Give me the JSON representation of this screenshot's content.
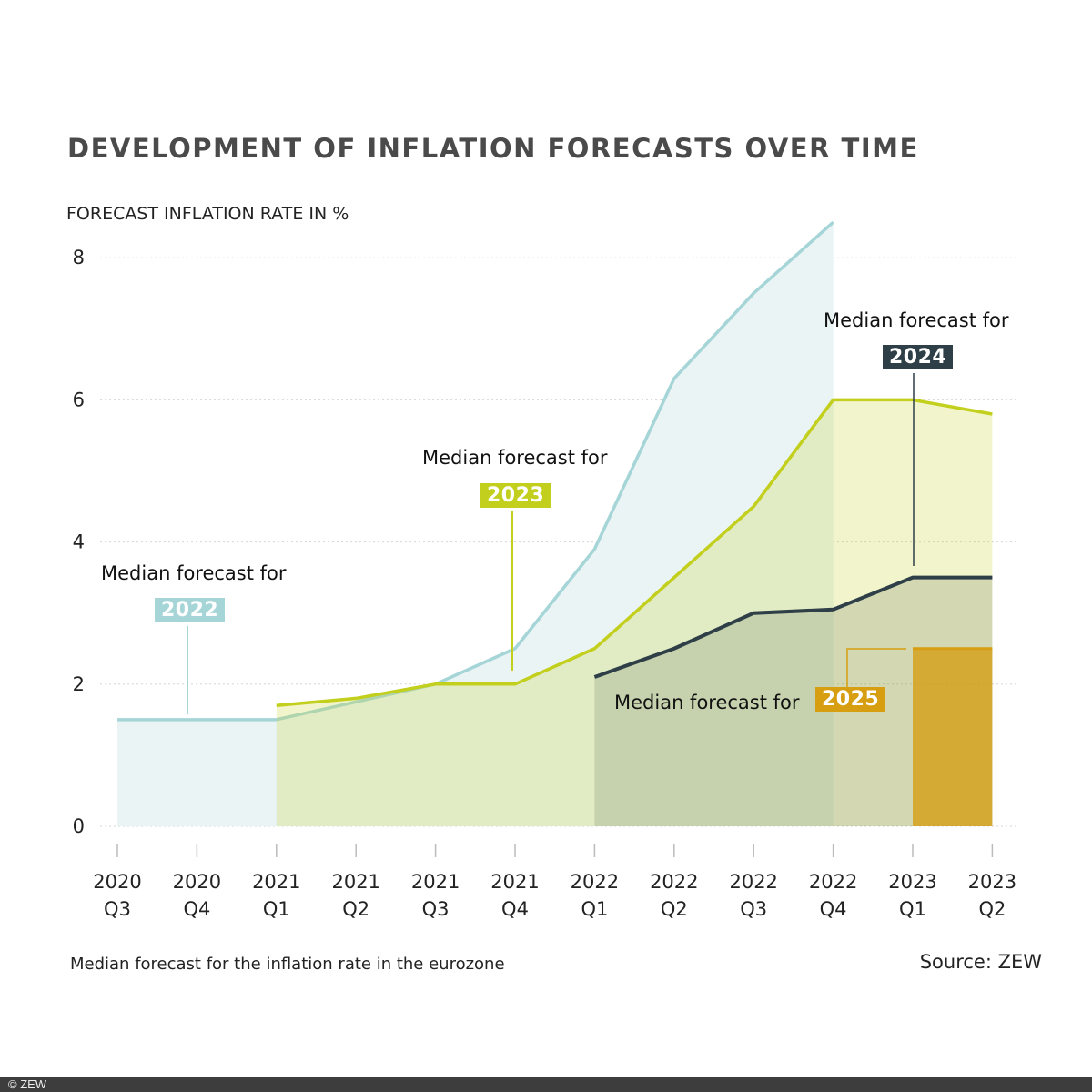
{
  "chart_data": {
    "type": "area",
    "title": "DEVELOPMENT OF INFLATION FORECASTS OVER TIME",
    "ylabel": "FORECAST INFLATION RATE IN %",
    "xlabel": "",
    "ylim": [
      0,
      8
    ],
    "yticks": [
      0,
      2,
      4,
      6,
      8
    ],
    "grid": true,
    "categories": [
      [
        "2020",
        "Q3"
      ],
      [
        "2020",
        "Q4"
      ],
      [
        "2021",
        "Q1"
      ],
      [
        "2021",
        "Q2"
      ],
      [
        "2021",
        "Q3"
      ],
      [
        "2021",
        "Q4"
      ],
      [
        "2022",
        "Q1"
      ],
      [
        "2022",
        "Q2"
      ],
      [
        "2022",
        "Q3"
      ],
      [
        "2022",
        "Q4"
      ],
      [
        "2023",
        "Q1"
      ],
      [
        "2023",
        "Q2"
      ]
    ],
    "series": [
      {
        "name": "2022",
        "color": "#a6d5d8",
        "fill": "#eaf4f5",
        "values": [
          1.5,
          1.5,
          1.5,
          1.75,
          2.0,
          2.5,
          3.9,
          6.3,
          7.5,
          8.5,
          null,
          null
        ]
      },
      {
        "name": "2023",
        "color": "#c2cf1c",
        "fill": "rgba(200,212,40,0.24)",
        "values": [
          null,
          null,
          1.7,
          1.8,
          2.0,
          2.0,
          2.5,
          3.5,
          4.5,
          6.0,
          6.0,
          5.8
        ]
      },
      {
        "name": "2024",
        "color": "#2e3f47",
        "fill": "rgba(60,75,60,0.17)",
        "values": [
          null,
          null,
          null,
          null,
          null,
          null,
          2.1,
          2.5,
          3.0,
          3.05,
          3.5,
          3.5
        ]
      },
      {
        "name": "2025",
        "color": "#d69e10",
        "fill": "rgba(212,158,20,0.8)",
        "values": [
          null,
          null,
          null,
          null,
          null,
          null,
          null,
          null,
          null,
          null,
          2.5,
          2.5
        ]
      }
    ],
    "annotations": [
      {
        "text": "Median forecast for",
        "series": "2022"
      },
      {
        "text": "Median forecast for",
        "series": "2023"
      },
      {
        "text": "Median forecast for",
        "series": "2024"
      },
      {
        "text": "Median forecast for",
        "series": "2025"
      }
    ],
    "note": "Median forecast for the inflation rate in the eurozone",
    "source": "Source: ZEW"
  },
  "footer": "© ZEW"
}
